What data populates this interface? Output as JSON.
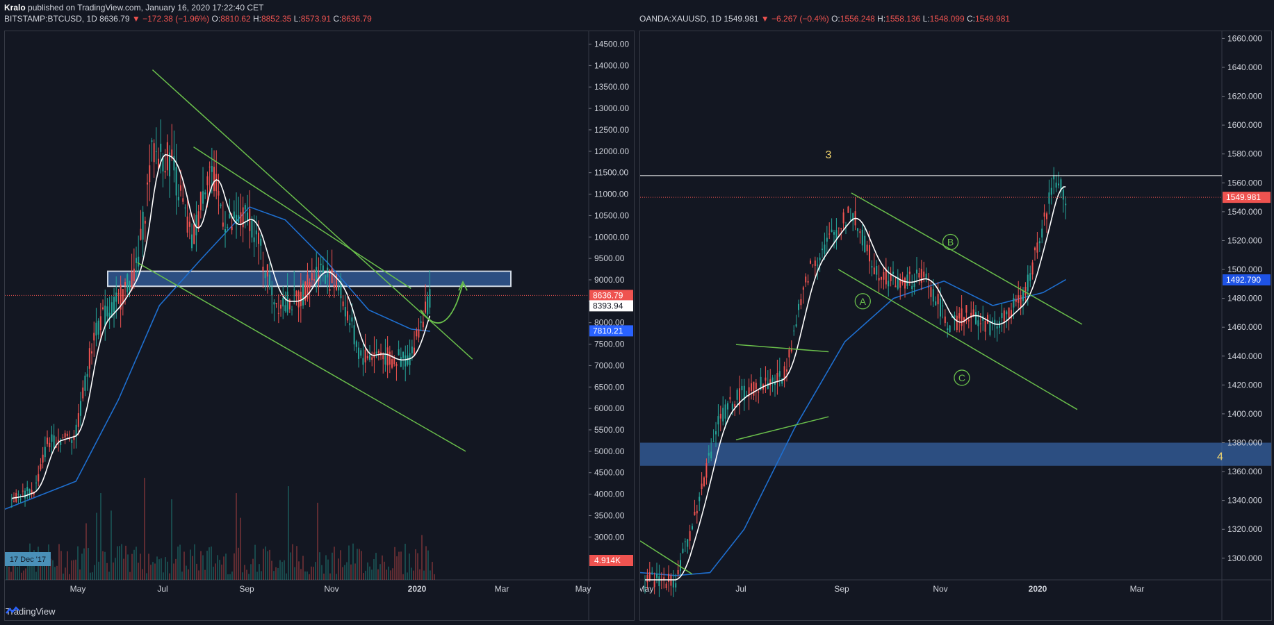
{
  "header": {
    "author": "Kralo",
    "published_text": "published on TradingView.com, January 16, 2020 17:22:40 CET"
  },
  "footer": {
    "brand": "TradingView"
  },
  "left_chart": {
    "symbol": "BITSTAMP:BTCUSD, 1D",
    "last": "8636.79",
    "change": "−172.38 (−1.96%)",
    "open": "8810.62",
    "high": "8852.35",
    "low": "8573.91",
    "close": "8636.79",
    "date_badge": "17 Dec '17",
    "price_badges": [
      {
        "text": "8636.79",
        "value": 8636.79,
        "bg": "#ef5350",
        "fg": "#ffffff"
      },
      {
        "text": "8393.94",
        "value": 8393.94,
        "bg": "#ffffff",
        "fg": "#131722"
      },
      {
        "text": "7810.21",
        "value": 7810.21,
        "bg": "#2962ff",
        "fg": "#ffffff"
      }
    ],
    "volume_badge": "4.914K"
  },
  "right_chart": {
    "symbol": "OANDA:XAUUSD, 1D",
    "last": "1549.981",
    "change": "−6.267 (−0.4%)",
    "open": "1556.248",
    "high": "1558.136",
    "low": "1548.099",
    "close": "1549.981",
    "price_badges": [
      {
        "text": "1549.981",
        "value": 1549.981,
        "bg": "#ef5350",
        "fg": "#ffffff"
      },
      {
        "text": "1492.790",
        "value": 1492.79,
        "bg": "#1e53e5",
        "fg": "#ffffff"
      }
    ],
    "labels": {
      "wave_3": "3",
      "wave_4": "4",
      "wave_a": "A",
      "wave_b": "B",
      "wave_c": "C"
    }
  },
  "colors": {
    "up": "#26a69a",
    "down": "#ef5350",
    "trendline": "#6abf4b",
    "ma": "#1e6fd0",
    "ma_fast": "#ffffff",
    "zone": "#3a6bb5"
  },
  "chart_data": [
    {
      "type": "candlestick",
      "title": "BITSTAMP:BTCUSD, 1D",
      "x_ticks": [
        "May",
        "Jul",
        "Sep",
        "Nov",
        "2020",
        "Mar",
        "May"
      ],
      "y_ticks": [
        3000,
        3500,
        4000,
        4500,
        5000,
        5500,
        6000,
        6500,
        7000,
        7500,
        8000,
        8500,
        9000,
        9500,
        10000,
        10500,
        11000,
        11500,
        12000,
        12500,
        13000,
        13500,
        14000,
        14500
      ],
      "ylim": [
        2000,
        14800
      ],
      "price_series": {
        "x": [
          "2019-03-15",
          "2019-04-01",
          "2019-04-10",
          "2019-05-01",
          "2019-05-15",
          "2019-06-01",
          "2019-06-15",
          "2019-06-26",
          "2019-07-10",
          "2019-07-25",
          "2019-08-06",
          "2019-08-20",
          "2019-09-05",
          "2019-09-24",
          "2019-10-10",
          "2019-10-26",
          "2019-11-10",
          "2019-11-25",
          "2019-12-10",
          "2019-12-18",
          "2020-01-01",
          "2020-01-08",
          "2020-01-15"
        ],
        "close": [
          3900,
          4100,
          5200,
          5400,
          7900,
          8500,
          9300,
          12000,
          11800,
          9800,
          11700,
          10200,
          10500,
          8500,
          8500,
          9300,
          8800,
          7200,
          7300,
          7100,
          7200,
          8000,
          8637
        ]
      },
      "zone": {
        "low": 8850,
        "high": 9200
      },
      "annotations": [
        "descending trendlines",
        "projected path arrow"
      ]
    },
    {
      "type": "candlestick",
      "title": "OANDA:XAUUSD, 1D",
      "x_ticks": [
        "May",
        "Jul",
        "Sep",
        "Nov",
        "2020",
        "Mar"
      ],
      "y_ticks": [
        1300,
        1320,
        1340,
        1360,
        1380,
        1400,
        1420,
        1440,
        1460,
        1480,
        1500,
        1520,
        1540,
        1560,
        1580,
        1600,
        1620,
        1640,
        1660
      ],
      "ylim": [
        1285,
        1665
      ],
      "price_series": {
        "x": [
          "2019-05-01",
          "2019-05-20",
          "2019-06-01",
          "2019-06-15",
          "2019-06-25",
          "2019-07-10",
          "2019-07-25",
          "2019-08-10",
          "2019-08-25",
          "2019-09-05",
          "2019-09-20",
          "2019-10-05",
          "2019-10-20",
          "2019-11-05",
          "2019-11-15",
          "2019-12-01",
          "2019-12-20",
          "2020-01-01",
          "2020-01-08",
          "2020-01-15"
        ],
        "close": [
          1285,
          1285,
          1330,
          1395,
          1410,
          1420,
          1425,
          1500,
          1525,
          1540,
          1500,
          1490,
          1495,
          1460,
          1470,
          1460,
          1480,
          1530,
          1565,
          1550
        ]
      },
      "horizontal_line": 1565,
      "zone": {
        "low": 1364,
        "high": 1380
      },
      "annotations": [
        "A",
        "B",
        "C",
        "3",
        "4"
      ]
    }
  ]
}
